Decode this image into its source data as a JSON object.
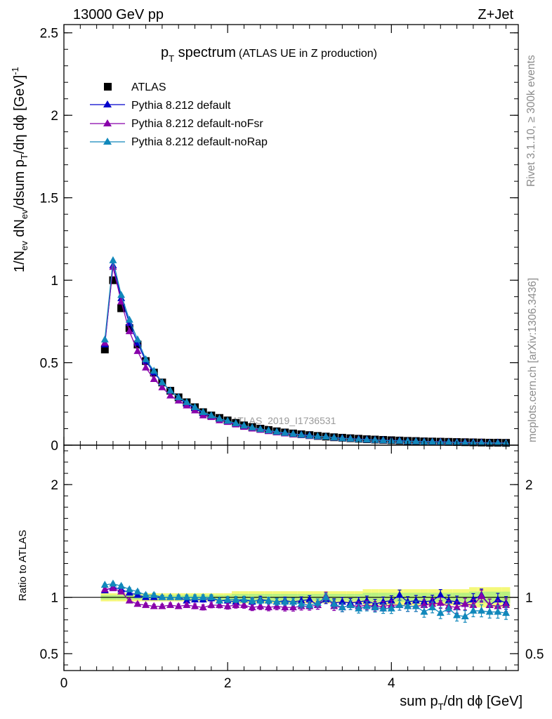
{
  "header": {
    "left": "13000 GeV pp",
    "right": "Z+Jet"
  },
  "side_labels": {
    "rivet": "Rivet 3.1.10, ≥ 300k events",
    "mcplots": "mcplots.cern.ch [arXiv:1306.3436]"
  },
  "watermark": "ATLAS_2019_I1736531",
  "main_plot": {
    "title_main": "p",
    "title_sub": "T",
    "title_rest": " spectrum",
    "title_suffix": "(ATLAS UE in Z production)",
    "ylabel": "1/N_ev dN_ev/dsum p_T/dη dϕ [GeV]^-1",
    "ylabel_parts": {
      "p1": "1/N",
      "s1": "ev",
      "p2": " dN",
      "s2": "ev",
      "p3": "/dsum p",
      "s3": "T",
      "p4": "/dη dϕ  [GeV]",
      "sup": "-1"
    },
    "yticks": [
      "0",
      "0.5",
      "1",
      "1.5",
      "2",
      "2.5"
    ],
    "ytick_values": [
      0,
      0.5,
      1,
      1.5,
      2,
      2.5
    ],
    "ylim": [
      0,
      2.55
    ]
  },
  "ratio_plot": {
    "ylabel": "Ratio to ATLAS",
    "yticks": [
      "0.5",
      "1",
      "2"
    ],
    "ytick_values": [
      0.5,
      1,
      2
    ],
    "yticks_right": [
      "0.5",
      "1",
      "2"
    ],
    "ylim": [
      0.35,
      2.35
    ]
  },
  "xaxis": {
    "label_parts": {
      "p1": "sum p",
      "s1": "T",
      "p2": "/dη dϕ  [GeV]"
    },
    "ticks": [
      "0",
      "2",
      "4"
    ],
    "tick_values": [
      0,
      2,
      4
    ],
    "xlim": [
      0,
      5.55
    ]
  },
  "legend": [
    {
      "label": "ATLAS",
      "marker": "square",
      "color": "#000000"
    },
    {
      "label": "Pythia 8.212 default",
      "marker": "triangle",
      "color": "#0000cc"
    },
    {
      "label": "Pythia 8.212 default-noFsr",
      "marker": "triangle",
      "color": "#8800aa"
    },
    {
      "label": "Pythia 8.212 default-noRap",
      "marker": "triangle",
      "color": "#1188bb"
    }
  ],
  "chart_data": {
    "type": "scatter",
    "title": "p_T spectrum (ATLAS UE in Z production)",
    "xlabel": "sum p_T/dη dϕ [GeV]",
    "ylabel": "1/N_ev dN_ev/dsum p_T/dη dϕ [GeV]^-1",
    "xlim": [
      0,
      5.55
    ],
    "ylim": [
      0,
      2.55
    ],
    "ratio_ylim": [
      0.35,
      2.35
    ],
    "x": [
      0.5,
      0.6,
      0.7,
      0.8,
      0.9,
      1.0,
      1.1,
      1.2,
      1.3,
      1.4,
      1.5,
      1.6,
      1.7,
      1.8,
      1.9,
      2.0,
      2.1,
      2.2,
      2.3,
      2.4,
      2.5,
      2.6,
      2.7,
      2.8,
      2.9,
      3.0,
      3.1,
      3.2,
      3.3,
      3.4,
      3.5,
      3.6,
      3.7,
      3.8,
      3.9,
      4.0,
      4.1,
      4.2,
      4.3,
      4.4,
      4.5,
      4.6,
      4.7,
      4.8,
      4.9,
      5.0,
      5.1,
      5.2,
      5.3,
      5.4
    ],
    "series": [
      {
        "name": "ATLAS",
        "color": "#000000",
        "marker": "square",
        "values": [
          0.58,
          1.0,
          0.83,
          0.71,
          0.61,
          0.51,
          0.44,
          0.38,
          0.33,
          0.29,
          0.26,
          0.23,
          0.2,
          0.18,
          0.165,
          0.15,
          0.135,
          0.12,
          0.11,
          0.1,
          0.092,
          0.084,
          0.077,
          0.071,
          0.066,
          0.061,
          0.056,
          0.052,
          0.048,
          0.045,
          0.042,
          0.039,
          0.036,
          0.034,
          0.032,
          0.03,
          0.028,
          0.026,
          0.025,
          0.023,
          0.022,
          0.021,
          0.02,
          0.019,
          0.018,
          0.017,
          0.016,
          0.015,
          0.015,
          0.014
        ]
      },
      {
        "name": "Pythia 8.212 default",
        "color": "#0000cc",
        "marker": "triangle",
        "values": [
          0.61,
          1.09,
          0.89,
          0.74,
          0.62,
          0.51,
          0.44,
          0.38,
          0.33,
          0.29,
          0.25,
          0.225,
          0.195,
          0.178,
          0.16,
          0.146,
          0.13,
          0.118,
          0.106,
          0.098,
          0.089,
          0.081,
          0.075,
          0.068,
          0.064,
          0.06,
          0.052,
          0.051,
          0.046,
          0.043,
          0.04,
          0.037,
          0.035,
          0.032,
          0.031,
          0.029,
          0.028,
          0.025,
          0.024,
          0.022,
          0.021,
          0.021,
          0.019,
          0.018,
          0.017,
          0.017,
          0.016,
          0.014,
          0.015,
          0.013
        ],
        "ratio": [
          1.06,
          1.09,
          1.07,
          1.04,
          1.02,
          1.0,
          1.0,
          1.0,
          1.0,
          1.0,
          0.97,
          0.98,
          0.98,
          0.99,
          0.97,
          0.97,
          0.96,
          0.98,
          0.96,
          0.98,
          0.97,
          0.96,
          0.97,
          0.96,
          0.97,
          0.98,
          0.93,
          0.98,
          0.95,
          0.96,
          0.95,
          0.96,
          0.97,
          0.94,
          0.96,
          0.97,
          1.02,
          0.96,
          0.97,
          0.96,
          0.97,
          1.02,
          0.97,
          0.96,
          0.94,
          0.98,
          1.02,
          0.93,
          0.98,
          0.95
        ]
      },
      {
        "name": "Pythia 8.212 default-noFsr",
        "color": "#8800aa",
        "marker": "triangle",
        "values": [
          0.62,
          1.08,
          0.87,
          0.69,
          0.57,
          0.47,
          0.4,
          0.35,
          0.3,
          0.27,
          0.24,
          0.21,
          0.18,
          0.17,
          0.15,
          0.14,
          0.125,
          0.11,
          0.1,
          0.092,
          0.084,
          0.077,
          0.07,
          0.065,
          0.06,
          0.055,
          0.052,
          0.051,
          0.044,
          0.041,
          0.039,
          0.036,
          0.033,
          0.031,
          0.029,
          0.028,
          0.026,
          0.024,
          0.023,
          0.021,
          0.021,
          0.02,
          0.019,
          0.017,
          0.017,
          0.016,
          0.016,
          0.014,
          0.014,
          0.013
        ],
        "ratio": [
          1.07,
          1.08,
          1.05,
          0.97,
          0.94,
          0.93,
          0.92,
          0.92,
          0.93,
          0.92,
          0.93,
          0.92,
          0.91,
          0.93,
          0.93,
          0.92,
          0.93,
          0.93,
          0.91,
          0.92,
          0.91,
          0.92,
          0.91,
          0.91,
          0.92,
          0.92,
          0.93,
          1.01,
          0.92,
          0.91,
          0.93,
          0.92,
          0.93,
          0.92,
          0.92,
          0.93,
          0.93,
          0.92,
          0.92,
          0.93,
          0.94,
          0.95,
          0.92,
          0.91,
          0.94,
          0.93,
          1.01,
          0.93,
          0.92,
          0.93
        ]
      },
      {
        "name": "Pythia 8.212 default-noRap",
        "color": "#1188bb",
        "marker": "triangle",
        "values": [
          0.64,
          1.12,
          0.91,
          0.76,
          0.64,
          0.52,
          0.45,
          0.38,
          0.33,
          0.29,
          0.26,
          0.23,
          0.2,
          0.18,
          0.16,
          0.147,
          0.132,
          0.118,
          0.107,
          0.097,
          0.089,
          0.081,
          0.074,
          0.068,
          0.062,
          0.057,
          0.053,
          0.051,
          0.045,
          0.041,
          0.039,
          0.035,
          0.033,
          0.031,
          0.029,
          0.027,
          0.026,
          0.024,
          0.023,
          0.02,
          0.02,
          0.018,
          0.018,
          0.016,
          0.015,
          0.015,
          0.014,
          0.013,
          0.013,
          0.012
        ],
        "ratio": [
          1.11,
          1.12,
          1.1,
          1.07,
          1.05,
          1.02,
          1.02,
          1.0,
          1.0,
          1.0,
          1.0,
          1.0,
          1.0,
          1.0,
          0.97,
          0.98,
          0.98,
          0.98,
          0.97,
          0.97,
          0.97,
          0.96,
          0.96,
          0.96,
          0.94,
          0.93,
          0.95,
          1.0,
          0.94,
          0.91,
          0.93,
          0.9,
          0.92,
          0.91,
          0.9,
          0.9,
          0.93,
          0.92,
          0.92,
          0.87,
          0.91,
          0.86,
          0.9,
          0.84,
          0.83,
          0.88,
          0.88,
          0.87,
          0.87,
          0.86
        ]
      }
    ],
    "ratio_band_halfwidth": [
      0.02,
      0.02,
      0.02,
      0.02,
      0.02,
      0.02,
      0.02,
      0.02,
      0.02,
      0.02,
      0.02,
      0.02,
      0.02,
      0.02,
      0.02,
      0.02,
      0.03,
      0.03,
      0.03,
      0.03,
      0.03,
      0.03,
      0.03,
      0.03,
      0.03,
      0.03,
      0.03,
      0.03,
      0.03,
      0.03,
      0.03,
      0.03,
      0.04,
      0.04,
      0.04,
      0.04,
      0.04,
      0.04,
      0.04,
      0.04,
      0.04,
      0.04,
      0.04,
      0.04,
      0.04,
      0.05,
      0.05,
      0.05,
      0.05,
      0.05
    ],
    "colors": {
      "band_inner": "#b8f080",
      "band_outer": "#f4f87a"
    }
  }
}
